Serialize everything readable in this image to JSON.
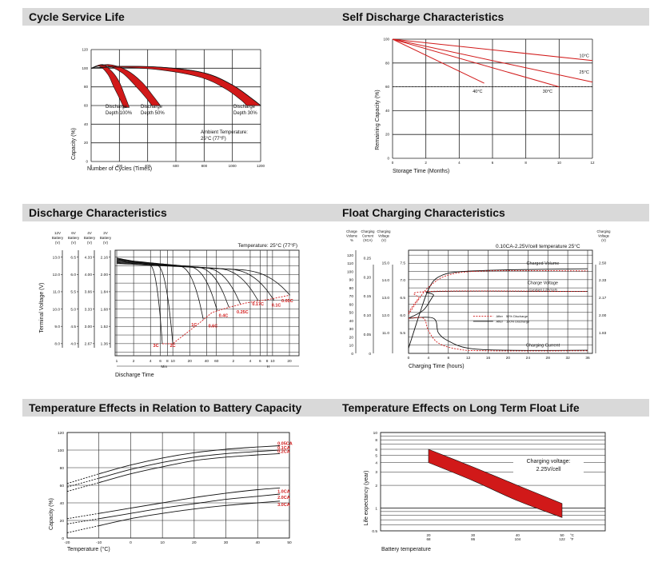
{
  "colors": {
    "accent": "#d11919",
    "grid": "#222222",
    "curve": "#111111",
    "header": "#d9d9d9"
  },
  "chart_data": [
    {
      "id": "cycle_life",
      "type": "line",
      "title": "Cycle Service Life",
      "xlabel": "Number of Cycles (Times)",
      "ylabel": "Capacity (%)",
      "xlim": [
        0,
        1200
      ],
      "ylim": [
        0,
        120
      ],
      "xticks": [
        0,
        200,
        400,
        600,
        800,
        1000,
        1200
      ],
      "yticks": [
        0,
        20,
        40,
        60,
        80,
        100,
        120
      ],
      "series": [
        {
          "name": "Discharge Depth 100%",
          "label_lines": [
            "Discharge",
            "Depth 100%"
          ],
          "upper": [
            [
              0,
              100
            ],
            [
              80,
              104
            ],
            [
              150,
              96
            ],
            [
              200,
              85
            ],
            [
              240,
              70
            ],
            [
              270,
              58
            ]
          ],
          "lower": [
            [
              0,
              100
            ],
            [
              60,
              102
            ],
            [
              120,
              93
            ],
            [
              160,
              80
            ],
            [
              200,
              68
            ],
            [
              230,
              58
            ]
          ]
        },
        {
          "name": "Discharge Depth 50%",
          "label_lines": [
            "Discharge",
            "Depth 50%"
          ],
          "upper": [
            [
              0,
              100
            ],
            [
              120,
              104
            ],
            [
              250,
              98
            ],
            [
              360,
              85
            ],
            [
              440,
              70
            ],
            [
              490,
              60
            ]
          ],
          "lower": [
            [
              0,
              100
            ],
            [
              100,
              103
            ],
            [
              220,
              95
            ],
            [
              320,
              80
            ],
            [
              390,
              68
            ],
            [
              430,
              60
            ]
          ]
        },
        {
          "name": "Discharge Depth 30%",
          "label_lines": [
            "Discharge",
            "Depth 30%"
          ],
          "upper": [
            [
              0,
              100
            ],
            [
              200,
              102
            ],
            [
              500,
              101
            ],
            [
              800,
              95
            ],
            [
              1000,
              82
            ],
            [
              1150,
              66
            ],
            [
              1200,
              60
            ]
          ],
          "lower": [
            [
              0,
              100
            ],
            [
              200,
              101
            ],
            [
              500,
              98
            ],
            [
              780,
              90
            ],
            [
              950,
              78
            ],
            [
              1060,
              66
            ],
            [
              1100,
              60
            ]
          ]
        }
      ],
      "annotation": [
        "Ambient Temperature:",
        "25°C (77°F)"
      ]
    },
    {
      "id": "self_discharge",
      "type": "line",
      "title": "Self Discharge Characteristics",
      "xlabel": "Storage Time (Months)",
      "ylabel": "Remaining Capacity (%)",
      "xlim": [
        0,
        12
      ],
      "ylim": [
        0,
        100
      ],
      "xticks": [
        0,
        2,
        4,
        6,
        8,
        10,
        12
      ],
      "yticks": [
        0,
        20,
        40,
        60,
        80,
        100
      ],
      "dashed_y": 60,
      "series": [
        {
          "name": "10°C",
          "points": [
            [
              0,
              100
            ],
            [
              12,
              82
            ]
          ]
        },
        {
          "name": "25°C",
          "points": [
            [
              0,
              100
            ],
            [
              12,
              64
            ]
          ]
        },
        {
          "name": "30°C",
          "points": [
            [
              0,
              100
            ],
            [
              10,
              60
            ]
          ]
        },
        {
          "name": "40°C",
          "points": [
            [
              0,
              100
            ],
            [
              5.5,
              63
            ]
          ]
        }
      ]
    },
    {
      "id": "discharge",
      "type": "line",
      "title": "Discharge Characteristics",
      "xlabel": "Discharge Time",
      "ylabel": "Terminal Voltage (V)",
      "annotation": "Temperature: 25°C (77°F)",
      "voltage_scales": [
        {
          "header": [
            "12V",
            "Battery",
            "(V)"
          ],
          "ticks": [
            "13.0",
            "12.0",
            "11.0",
            "10.0",
            "9.0",
            "8.0"
          ]
        },
        {
          "header": [
            "6V",
            "Battery",
            "(V)"
          ],
          "ticks": [
            "6.5",
            "6.0",
            "5.5",
            "5.0",
            "4.5",
            "4.0"
          ]
        },
        {
          "header": [
            "4V",
            "Battery",
            "(V)"
          ],
          "ticks": [
            "4.33",
            "4.00",
            "3.66",
            "3.33",
            "3.00",
            "2.67"
          ]
        },
        {
          "header": [
            "2V",
            "Battery",
            "(V)"
          ],
          "ticks": [
            "2.16",
            "2.00",
            "1.84",
            "1.68",
            "1.52",
            "1.36"
          ]
        }
      ],
      "x_ticks_min": [
        "1",
        "2",
        "4",
        "6",
        "8",
        "10",
        "20",
        "40",
        "60"
      ],
      "x_ticks_h": [
        "2",
        "4",
        "6",
        "8",
        "10",
        "20"
      ],
      "unit_min": "Min",
      "unit_h": "H",
      "rates": [
        "3C",
        "2C",
        "1C",
        "0.6C",
        "0.4C",
        "0.25C",
        "0.17C",
        "0.1C",
        "0.05C"
      ],
      "rate_labels": [
        "3C",
        "2C",
        "1C",
        "0.6C",
        "0.4C",
        "0.25C",
        "0.17C",
        "0.1C",
        "0.05C"
      ]
    },
    {
      "id": "float_charging",
      "type": "line",
      "title": "Float Charging Characteristics",
      "xlabel": "Charging Time (hours)",
      "annotation": "0.10CA-2.25V/cell  temperature 25°C",
      "xticks": [
        0,
        4,
        8,
        12,
        16,
        20,
        24,
        28,
        32,
        36
      ],
      "axis_headers": {
        "volume": [
          "Charge",
          "Volume",
          "%"
        ],
        "current": [
          "Charging",
          "Current",
          "(XCA)"
        ],
        "voltage": [
          "Charging",
          "Voltage",
          "(V)"
        ],
        "right": [
          "Charging",
          "Voltage",
          "(V)"
        ]
      },
      "volume_ticks": [
        "0",
        "10",
        "20",
        "30",
        "40",
        "50",
        "60",
        "70",
        "80",
        "90",
        "100",
        "110",
        "120"
      ],
      "current_ticks": [
        "0",
        "0.05",
        "0.10",
        "0.15",
        "0.20",
        "0.25"
      ],
      "voltage_ticks": [
        "11.0",
        "12.0",
        "13.0",
        "14.0",
        "15.0"
      ],
      "voltage_ticks2": [
        "5.5",
        "6.0",
        "6.5",
        "7.0",
        "7.5"
      ],
      "right_ticks": [
        "1.83",
        "2.00",
        "2.17",
        "2.33",
        "2.50"
      ],
      "series_labels": {
        "volume": "Charged Volume",
        "voltage": [
          "Charge Voltage",
          "(Constant 2.25V/cell)"
        ],
        "current": "Charging Current"
      },
      "legend": [
        "After 50% Discharge",
        "After 100% Discharge"
      ],
      "legend_red": "After",
      "legend_red_rest": "50% Discharge",
      "legend_blk": "After",
      "legend_blk_rest": "100% Discharge"
    },
    {
      "id": "temperature_capacity",
      "type": "line",
      "title": "Temperature Effects in Relation to Battery Capacity",
      "xlabel": "Temperature (°C)",
      "ylabel": "Capacity (%)",
      "xlim": [
        -20,
        50
      ],
      "ylim": [
        0,
        120
      ],
      "xticks": [
        -20,
        -10,
        0,
        10,
        20,
        30,
        40,
        50
      ],
      "yticks": [
        0,
        20,
        40,
        60,
        80,
        100,
        120
      ],
      "series": [
        {
          "name": "0.05CA",
          "points": [
            [
              -20,
              62
            ],
            [
              -10,
              73
            ],
            [
              0,
              83
            ],
            [
              10,
              91
            ],
            [
              20,
              97
            ],
            [
              30,
              101
            ],
            [
              40,
              103.5
            ],
            [
              47,
              105
            ]
          ]
        },
        {
          "name": "0.1CA",
          "points": [
            [
              -20,
              58
            ],
            [
              -10,
              68
            ],
            [
              0,
              78
            ],
            [
              10,
              86
            ],
            [
              20,
              92
            ],
            [
              30,
              96
            ],
            [
              40,
              98.5
            ],
            [
              47,
              100
            ]
          ]
        },
        {
          "name": "0.2CA",
          "points": [
            [
              -20,
              53
            ],
            [
              -10,
              63
            ],
            [
              0,
              73
            ],
            [
              10,
              81
            ],
            [
              20,
              88
            ],
            [
              30,
              92
            ],
            [
              40,
              94.5
            ],
            [
              47,
              96
            ]
          ]
        },
        {
          "name": "1.0CA",
          "points": [
            [
              -20,
              22
            ],
            [
              -10,
              28
            ],
            [
              0,
              34
            ],
            [
              10,
              40
            ],
            [
              20,
              46
            ],
            [
              30,
              51
            ],
            [
              40,
              55
            ],
            [
              47,
              57
            ]
          ]
        },
        {
          "name": "2.0CA",
          "points": [
            [
              -20,
              16
            ],
            [
              -10,
              22
            ],
            [
              0,
              28
            ],
            [
              10,
              34
            ],
            [
              20,
              39
            ],
            [
              30,
              44
            ],
            [
              40,
              47.5
            ],
            [
              47,
              50
            ]
          ]
        },
        {
          "name": "3.0CA",
          "points": [
            [
              -20,
              6
            ],
            [
              -10,
              14
            ],
            [
              0,
              22
            ],
            [
              10,
              28
            ],
            [
              20,
              33
            ],
            [
              30,
              37
            ],
            [
              40,
              40
            ],
            [
              47,
              42
            ]
          ]
        }
      ],
      "dashed_until": -10
    },
    {
      "id": "float_life",
      "type": "area",
      "title": "Temperature Effects on Long Term Float Life",
      "xlabel": "Battery temperature",
      "ylabel": "Life expectancy (year)",
      "yscale": "log",
      "ylim": [
        0.5,
        10
      ],
      "yticks": [
        "0.5",
        "1",
        "2",
        "3",
        "4",
        "5",
        "6",
        "8",
        "10"
      ],
      "ytick_values": [
        0.5,
        1,
        2,
        3,
        4,
        5,
        6,
        8,
        10
      ],
      "xticks_c": [
        "20",
        "30",
        "40",
        "50"
      ],
      "xticks_f": [
        "68",
        "86",
        "104",
        "122"
      ],
      "x_unit_c": "°C",
      "x_unit_f": "°F",
      "band_upper": [
        [
          20,
          6.0
        ],
        [
          30,
          3.5
        ],
        [
          40,
          2.0
        ],
        [
          50,
          1.15
        ]
      ],
      "band_lower": [
        [
          20,
          4.0
        ],
        [
          30,
          2.3
        ],
        [
          40,
          1.25
        ],
        [
          50,
          0.75
        ]
      ],
      "annotation": [
        "Charging voltage:",
        "2.25V/cell"
      ]
    }
  ]
}
